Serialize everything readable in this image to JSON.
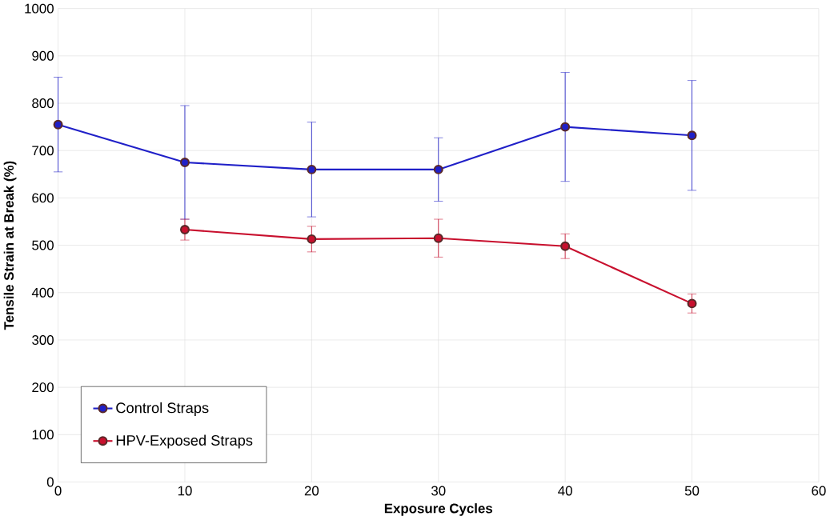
{
  "chart_data": {
    "type": "line",
    "xlabel": "Exposure Cycles",
    "ylabel": "Tensile Strain at Break (%)",
    "x": [
      0,
      10,
      20,
      30,
      40,
      50
    ],
    "series": [
      {
        "name": "Control Straps",
        "color": "#2020c8",
        "values": [
          755,
          675,
          660,
          660,
          750,
          732
        ],
        "errors": [
          100,
          120,
          100,
          67,
          115,
          116
        ]
      },
      {
        "name": "HPV-Exposed Straps",
        "color": "#c8102e",
        "x": [
          10,
          20,
          30,
          40,
          50
        ],
        "values": [
          533,
          513,
          515,
          498,
          377
        ],
        "errors": [
          22,
          27,
          40,
          26,
          20
        ]
      }
    ],
    "xlim": [
      0,
      60
    ],
    "ylim": [
      0,
      1000
    ],
    "xticks": [
      0,
      10,
      20,
      30,
      40,
      50,
      60
    ],
    "yticks": [
      0,
      100,
      200,
      300,
      400,
      500,
      600,
      700,
      800,
      900,
      1000
    ],
    "grid": true,
    "legend": "bottom left",
    "marker": "circle",
    "line_style": "solid"
  }
}
